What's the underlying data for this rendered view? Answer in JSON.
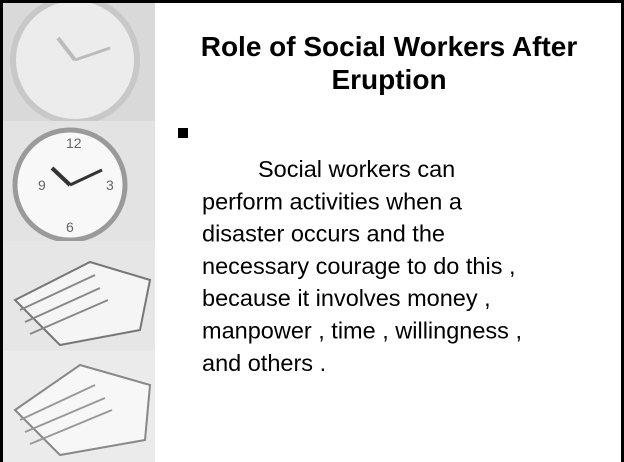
{
  "slide": {
    "title_lines": [
      "Role of Social Workers After",
      "Eruption"
    ],
    "body_lines": [
      "Social workers can",
      "perform activities when a",
      "disaster occurs and the",
      "necessary courage to do this ,",
      "because it involves money ,",
      "manpower , time , willingness ,",
      "and others ."
    ]
  }
}
